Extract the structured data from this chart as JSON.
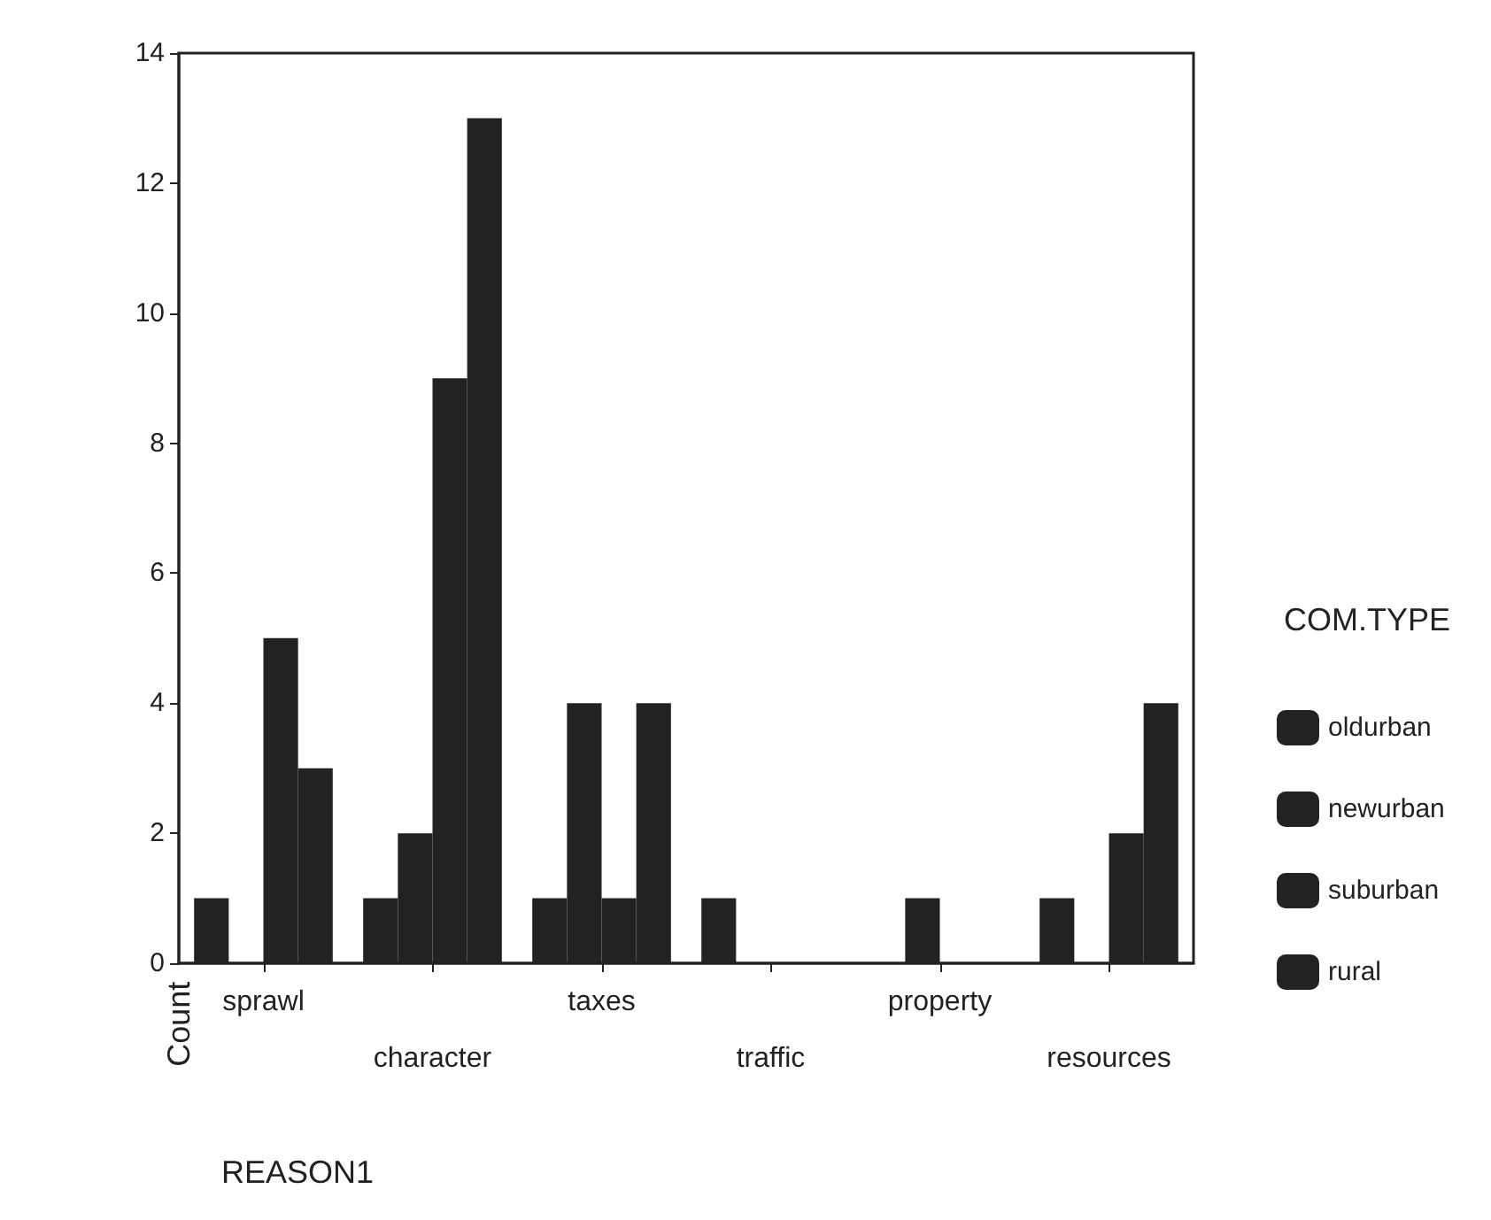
{
  "chart_data": {
    "type": "bar",
    "xlabel": "REASON1",
    "ylabel": "Count",
    "legend_title": "COM.TYPE",
    "categories": [
      "sprawl",
      "character",
      "taxes",
      "traffic",
      "property",
      "resources"
    ],
    "series": [
      {
        "name": "oldurban",
        "color": "#222222",
        "values": [
          1,
          1,
          1,
          1,
          0,
          1
        ]
      },
      {
        "name": "newurban",
        "color": "#222222",
        "values": [
          0,
          2,
          4,
          0,
          1,
          0
        ]
      },
      {
        "name": "suburban",
        "color": "#222222",
        "values": [
          5,
          9,
          1,
          0,
          0,
          2
        ]
      },
      {
        "name": "rural",
        "color": "#222222",
        "values": [
          3,
          13,
          4,
          0,
          0,
          4
        ]
      }
    ],
    "ylim": [
      0,
      14
    ],
    "yticks": [
      0,
      2,
      4,
      6,
      8,
      10,
      12,
      14
    ],
    "grid": false,
    "legend": "right"
  }
}
